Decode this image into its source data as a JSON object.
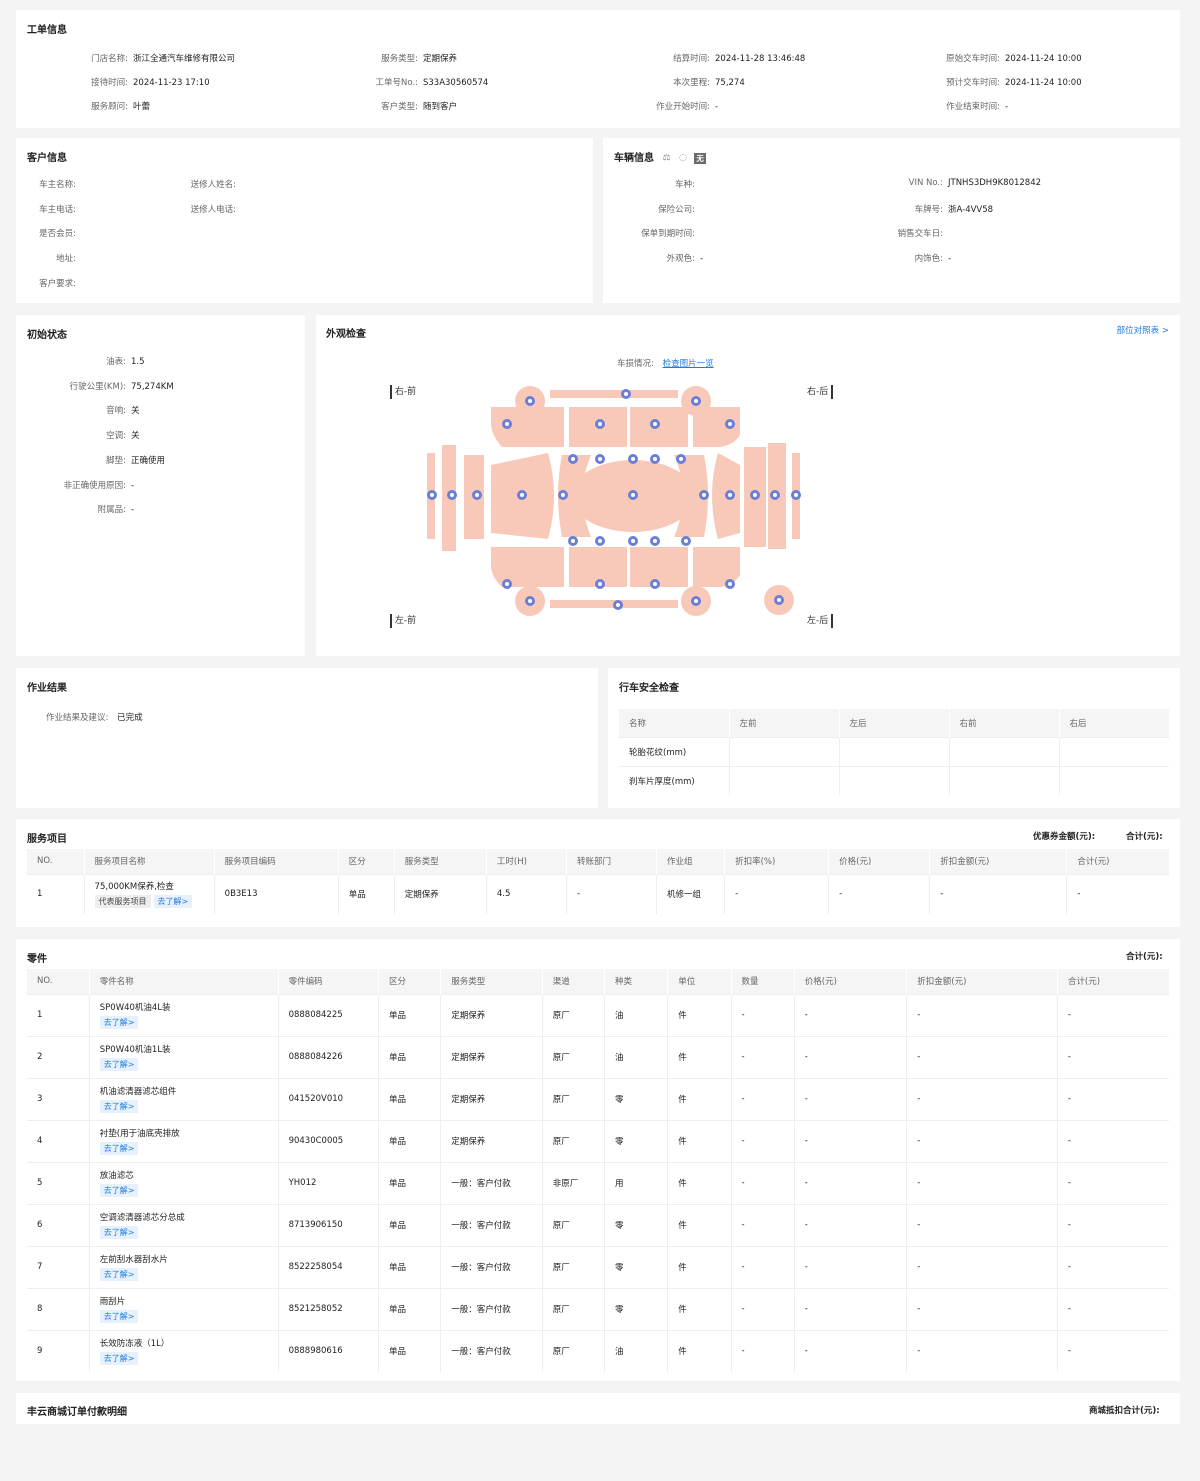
{
  "workorder": {
    "title": "工单信息",
    "fields": [
      {
        "label": "门店名称:",
        "value": "浙江全通汽车维修有限公司"
      },
      {
        "label": "服务类型:",
        "value": "定期保养"
      },
      {
        "label": "结算时间:",
        "value": "2024-11-28 13:46:48"
      },
      {
        "label": "原始交车时间:",
        "value": "2024-11-24 10:00"
      },
      {
        "label": "接待时间:",
        "value": "2024-11-23 17:10"
      },
      {
        "label": "工单号No.:",
        "value": "S33A30560574"
      },
      {
        "label": "本次里程:",
        "value": "75,274"
      },
      {
        "label": "预计交车时间:",
        "value": "2024-11-24 10:00"
      },
      {
        "label": "服务顾问:",
        "value": "叶蕾"
      },
      {
        "label": "客户类型:",
        "value": "随到客户"
      },
      {
        "label": "作业开始时间:",
        "value": "-"
      },
      {
        "label": "作业结束时间:",
        "value": "-"
      }
    ]
  },
  "customer": {
    "title": "客户信息",
    "fields": [
      {
        "label": "车主名称:",
        "value": ""
      },
      {
        "label": "送修人姓名:",
        "value": ""
      },
      {
        "label": "车主电话:",
        "value": ""
      },
      {
        "label": "送修人电话:",
        "value": ""
      },
      {
        "label": "是否会员:",
        "value": ""
      },
      {
        "label": "地址:",
        "value": ""
      },
      {
        "label": "客户要求:",
        "value": ""
      }
    ]
  },
  "vehicle": {
    "title": "车辆信息",
    "badge": "无",
    "fields": [
      {
        "label": "车种:",
        "value": ""
      },
      {
        "label": "VIN No.:",
        "value": "JTNHS3DH9K8012842"
      },
      {
        "label": "保险公司:",
        "value": ""
      },
      {
        "label": "车牌号:",
        "value": "浙A-4VV58"
      },
      {
        "label": "保单到期时间:",
        "value": ""
      },
      {
        "label": "销售交车日:",
        "value": ""
      },
      {
        "label": "外观色:",
        "value": "-"
      },
      {
        "label": "内饰色:",
        "value": "-"
      }
    ]
  },
  "initial": {
    "title": "初始状态",
    "fields": [
      {
        "label": "油表:",
        "value": "1.5"
      },
      {
        "label": "行驶公里(KM):",
        "value": "75,274KM"
      },
      {
        "label": "音响:",
        "value": "关"
      },
      {
        "label": "空调:",
        "value": "关"
      },
      {
        "label": "脚垫:",
        "value": "正确使用"
      },
      {
        "label": "非正确使用原因:",
        "value": "-"
      },
      {
        "label": "附属品:",
        "value": "-"
      }
    ]
  },
  "appearance": {
    "title": "外观检查",
    "link": "部位对照表 >",
    "damage_label": "车损情况:",
    "damage_link": "检查图片一览",
    "corners": {
      "rf": "右-前",
      "rr": "右-后",
      "lf": "左-前",
      "lr": "左-后"
    },
    "colors": {
      "panel": "#f8c9b8",
      "marker": "#6a7fd6"
    }
  },
  "result": {
    "title": "作业结果",
    "label": "作业结果及建议:",
    "value": "已完成"
  },
  "safety": {
    "title": "行车安全检查",
    "headers": [
      "名称",
      "左前",
      "左后",
      "右前",
      "右后"
    ],
    "rows": [
      [
        "轮胎花纹(mm)",
        "",
        "",
        "",
        ""
      ],
      [
        "刹车片厚度(mm)",
        "",
        "",
        "",
        ""
      ]
    ]
  },
  "services": {
    "title": "服务项目",
    "coupon_label": "优惠券金额(元):",
    "total_label": "合计(元):",
    "headers": [
      "NO.",
      "服务项目名称",
      "服务项目编码",
      "区分",
      "服务类型",
      "工时(H)",
      "转账部门",
      "作业组",
      "折扣率(%)",
      "价格(元)",
      "折扣金额(元)",
      "合计(元)"
    ],
    "rows": [
      {
        "no": "1",
        "name": "75,000KM保养,检查",
        "tag": "代表服务项目",
        "link": "去了解>",
        "code": "0B3E13",
        "cat": "单品",
        "type": "定期保养",
        "hours": "4.5",
        "dept": "-",
        "group": "机修一组",
        "rate": "-",
        "price": "-",
        "disc": "-",
        "total": "-"
      }
    ]
  },
  "parts": {
    "title": "零件",
    "total_label": "合计(元):",
    "headers": [
      "NO.",
      "零件名称",
      "零件编码",
      "区分",
      "服务类型",
      "渠道",
      "种类",
      "单位",
      "数量",
      "价格(元)",
      "折扣金额(元)",
      "合计(元)"
    ],
    "link": "去了解>",
    "rows": [
      {
        "no": "1",
        "name": "SP0W40机油4L装",
        "code": "0888084225",
        "cat": "单品",
        "type": "定期保养",
        "channel": "原厂",
        "kind": "油",
        "unit": "件",
        "qty": "-",
        "price": "-",
        "disc": "-",
        "total": "-"
      },
      {
        "no": "2",
        "name": "SP0W40机油1L装",
        "code": "0888084226",
        "cat": "单品",
        "type": "定期保养",
        "channel": "原厂",
        "kind": "油",
        "unit": "件",
        "qty": "-",
        "price": "-",
        "disc": "-",
        "total": "-"
      },
      {
        "no": "3",
        "name": "机油滤清器滤芯组件",
        "code": "041520V010",
        "cat": "单品",
        "type": "定期保养",
        "channel": "原厂",
        "kind": "零",
        "unit": "件",
        "qty": "-",
        "price": "-",
        "disc": "-",
        "total": "-"
      },
      {
        "no": "4",
        "name": "衬垫(用于油底壳排放",
        "code": "90430C0005",
        "cat": "单品",
        "type": "定期保养",
        "channel": "原厂",
        "kind": "零",
        "unit": "件",
        "qty": "-",
        "price": "-",
        "disc": "-",
        "total": "-"
      },
      {
        "no": "5",
        "name": "放油滤芯",
        "code": "YH012",
        "cat": "单品",
        "type": "一般：客户付款",
        "channel": "非原厂",
        "kind": "用",
        "unit": "件",
        "qty": "-",
        "price": "-",
        "disc": "-",
        "total": "-"
      },
      {
        "no": "6",
        "name": "空调滤清器滤芯分总成",
        "code": "8713906150",
        "cat": "单品",
        "type": "一般：客户付款",
        "channel": "原厂",
        "kind": "零",
        "unit": "件",
        "qty": "-",
        "price": "-",
        "disc": "-",
        "total": "-"
      },
      {
        "no": "7",
        "name": "左前刮水器刮水片",
        "code": "8522258054",
        "cat": "单品",
        "type": "一般：客户付款",
        "channel": "原厂",
        "kind": "零",
        "unit": "件",
        "qty": "-",
        "price": "-",
        "disc": "-",
        "total": "-"
      },
      {
        "no": "8",
        "name": "雨刮片",
        "code": "8521258052",
        "cat": "单品",
        "type": "一般：客户付款",
        "channel": "原厂",
        "kind": "零",
        "unit": "件",
        "qty": "-",
        "price": "-",
        "disc": "-",
        "total": "-"
      },
      {
        "no": "9",
        "name": "长效防冻液（1L）",
        "code": "0888980616",
        "cat": "单品",
        "type": "一般：客户付款",
        "channel": "原厂",
        "kind": "油",
        "unit": "件",
        "qty": "-",
        "price": "-",
        "disc": "-",
        "total": "-"
      }
    ]
  },
  "mall": {
    "title": "丰云商城订单付款明细",
    "total_label": "商城抵扣合计(元):"
  }
}
